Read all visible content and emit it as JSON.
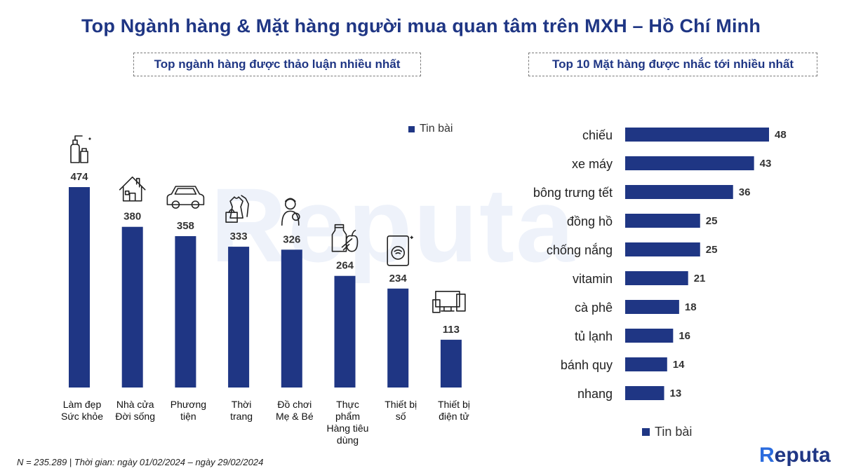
{
  "header": {
    "title": "Top Ngành hàng & Mặt hàng người mua quan tâm trên MXH – Hồ Chí Minh",
    "left_subtitle": "Top ngành hàng được thảo luận nhiều nhất",
    "right_subtitle": "Top 10 Mặt hàng được nhắc tới nhiều nhất"
  },
  "legend": {
    "left": "Tin bài",
    "right": "Tin bài"
  },
  "watermark": "Reputa",
  "footnote": "N = 235.289 | Thời gian: ngày 01/02/2024 – ngày 29/02/2024",
  "logo": {
    "text": "eputa",
    "mark": "R"
  },
  "colors": {
    "bar": "#1f3684",
    "title": "#1f3684"
  },
  "chart_data": [
    {
      "type": "bar",
      "orientation": "vertical",
      "series": [
        {
          "name": "Tin bài",
          "values": [
            474,
            380,
            358,
            333,
            326,
            264,
            234,
            113
          ]
        }
      ],
      "categories": [
        [
          "Làm đẹp",
          "Sức khỏe"
        ],
        [
          "Nhà cửa",
          "Đời sống"
        ],
        [
          "Phương",
          "tiện"
        ],
        [
          "Thời",
          "trang"
        ],
        [
          "Đồ chơi",
          "Mẹ & Bé"
        ],
        [
          "Thực",
          "phẩm",
          "Hàng tiêu",
          "dùng"
        ],
        [
          "Thiết bị",
          "số"
        ],
        [
          "Thiết bị",
          "điện tử"
        ]
      ],
      "icons": [
        "cosmetics-icon",
        "house-icon",
        "car-icon",
        "clothing-icon",
        "mother-baby-icon",
        "food-icon",
        "phone-wifi-icon",
        "devices-icon"
      ],
      "ylim": [
        0,
        474
      ],
      "grid": false,
      "legend_position": "top-right"
    },
    {
      "type": "bar",
      "orientation": "horizontal",
      "series": [
        {
          "name": "Tin bài",
          "values": [
            48,
            43,
            36,
            25,
            25,
            21,
            18,
            16,
            14,
            13
          ]
        }
      ],
      "categories": [
        "chiếu",
        "xe máy",
        "bông trưng tết",
        "đồng hồ",
        "chống nắng",
        "vitamin",
        "cà phê",
        "tủ lạnh",
        "bánh quy",
        "nhang"
      ],
      "xlim": [
        0,
        48
      ],
      "grid": false,
      "legend_position": "bottom"
    }
  ]
}
